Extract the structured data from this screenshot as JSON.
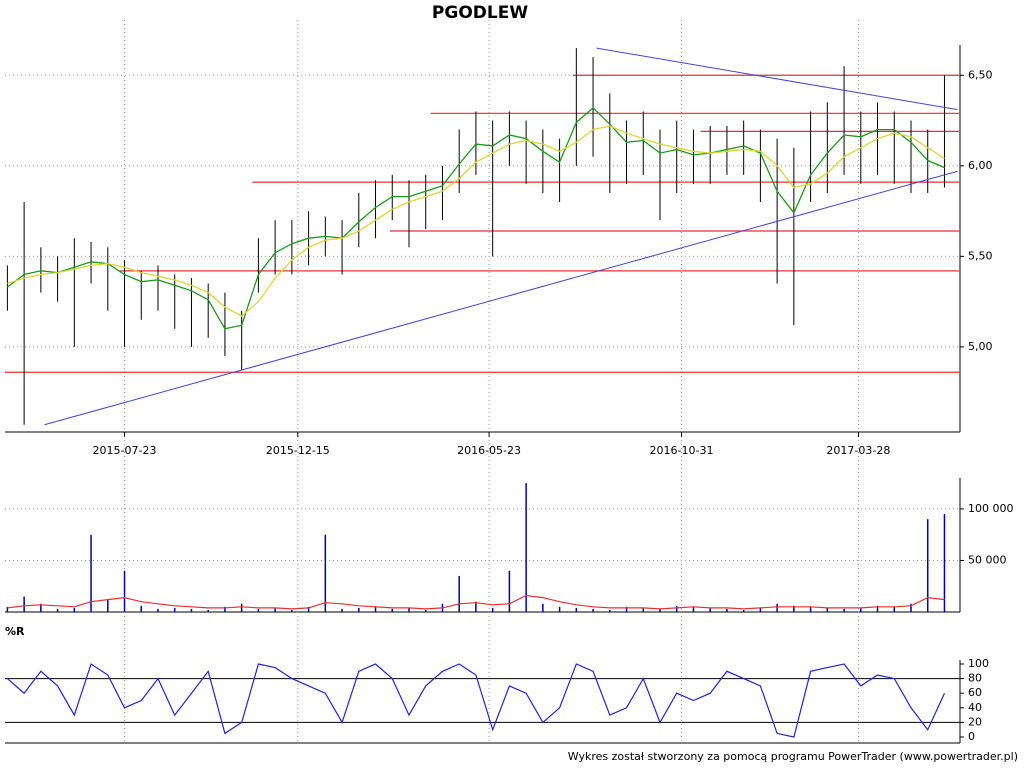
{
  "chart_data": {
    "type": "stock",
    "title": "PGODLEW",
    "footer": "Wykres został stworzony za pomocą programu PowerTrader (www.powertrader.pl)",
    "xlim": [
      "2015-04-14",
      "2017-06-21"
    ],
    "xticks": [
      "2015-07-23",
      "2015-12-15",
      "2016-05-23",
      "2016-10-31",
      "2017-03-28"
    ],
    "grid": true,
    "x": [
      "2015-04-16",
      "2015-04-30",
      "2015-05-14",
      "2015-05-28",
      "2015-06-11",
      "2015-06-25",
      "2015-07-09",
      "2015-07-23",
      "2015-08-06",
      "2015-08-20",
      "2015-09-03",
      "2015-09-17",
      "2015-10-01",
      "2015-10-15",
      "2015-10-29",
      "2015-11-12",
      "2015-11-26",
      "2015-12-10",
      "2015-12-24",
      "2016-01-07",
      "2016-01-21",
      "2016-02-04",
      "2016-02-18",
      "2016-03-03",
      "2016-03-17",
      "2016-03-31",
      "2016-04-14",
      "2016-04-28",
      "2016-05-12",
      "2016-05-26",
      "2016-06-09",
      "2016-06-23",
      "2016-07-07",
      "2016-07-21",
      "2016-08-04",
      "2016-08-18",
      "2016-09-01",
      "2016-09-15",
      "2016-09-29",
      "2016-10-13",
      "2016-10-27",
      "2016-11-10",
      "2016-11-24",
      "2016-12-08",
      "2016-12-22",
      "2017-01-05",
      "2017-01-19",
      "2017-02-02",
      "2017-02-16",
      "2017-03-02",
      "2017-03-16",
      "2017-03-30",
      "2017-04-13",
      "2017-04-27",
      "2017-05-11",
      "2017-05-25",
      "2017-06-08"
    ],
    "price": {
      "ylim": [
        4.53,
        6.75
      ],
      "yticks": [
        {
          "value": 5,
          "label": "5,00"
        },
        {
          "value": 5.5,
          "label": "5,50"
        },
        {
          "value": 6,
          "label": "6,00"
        },
        {
          "value": 6.5,
          "label": "6,50"
        }
      ],
      "bar_color": "#000000",
      "high": [
        5.45,
        5.8,
        5.55,
        5.5,
        5.6,
        5.58,
        5.55,
        5.48,
        5.42,
        5.45,
        5.4,
        5.38,
        5.35,
        5.3,
        5.2,
        5.6,
        5.7,
        5.7,
        5.75,
        5.72,
        5.7,
        5.85,
        5.92,
        5.95,
        5.92,
        5.95,
        6.0,
        6.2,
        6.3,
        6.25,
        6.3,
        6.25,
        6.2,
        6.15,
        6.65,
        6.6,
        6.4,
        6.25,
        6.3,
        6.2,
        6.25,
        6.2,
        6.22,
        6.22,
        6.25,
        6.2,
        6.15,
        6.1,
        6.3,
        6.35,
        6.55,
        6.3,
        6.35,
        6.3,
        6.25,
        6.2,
        6.5
      ],
      "low": [
        5.2,
        4.57,
        5.3,
        5.25,
        5.0,
        5.35,
        5.2,
        5.0,
        5.15,
        5.2,
        5.1,
        5.0,
        5.05,
        4.95,
        4.87,
        5.3,
        5.4,
        5.4,
        5.45,
        5.5,
        5.4,
        5.55,
        5.6,
        5.7,
        5.55,
        5.65,
        5.7,
        5.85,
        5.95,
        5.5,
        6.0,
        5.9,
        5.85,
        5.8,
        6.0,
        6.05,
        5.85,
        5.9,
        5.95,
        5.7,
        5.85,
        5.9,
        5.9,
        5.95,
        5.95,
        5.8,
        5.35,
        5.12,
        5.8,
        5.85,
        5.95,
        5.9,
        5.95,
        5.9,
        5.85,
        5.85,
        5.88
      ],
      "series": [
        {
          "color": "#1a9a1a",
          "values": [
            5.33,
            5.4,
            5.42,
            5.41,
            5.44,
            5.47,
            5.46,
            5.4,
            5.36,
            5.37,
            5.34,
            5.31,
            5.26,
            5.1,
            5.12,
            5.4,
            5.52,
            5.57,
            5.6,
            5.61,
            5.6,
            5.69,
            5.77,
            5.83,
            5.83,
            5.86,
            5.89,
            6.01,
            6.12,
            6.11,
            6.17,
            6.15,
            6.08,
            6.02,
            6.24,
            6.32,
            6.23,
            6.13,
            6.14,
            6.07,
            6.09,
            6.06,
            6.07,
            6.09,
            6.11,
            6.07,
            5.86,
            5.74,
            5.95,
            6.07,
            6.17,
            6.16,
            6.2,
            6.2,
            6.13,
            6.03,
            5.99
          ]
        },
        {
          "color": "#d8d830",
          "values": [
            5.35,
            5.38,
            5.4,
            5.41,
            5.43,
            5.45,
            5.46,
            5.44,
            5.41,
            5.39,
            5.37,
            5.34,
            5.3,
            5.22,
            5.17,
            5.25,
            5.38,
            5.48,
            5.55,
            5.59,
            5.6,
            5.64,
            5.7,
            5.76,
            5.8,
            5.83,
            5.86,
            5.93,
            6.02,
            6.07,
            6.12,
            6.14,
            6.12,
            6.08,
            6.13,
            6.2,
            6.22,
            6.18,
            6.15,
            6.12,
            6.1,
            6.08,
            6.07,
            6.08,
            6.09,
            6.08,
            6.0,
            5.88,
            5.9,
            5.96,
            6.05,
            6.1,
            6.15,
            6.18,
            6.16,
            6.1,
            6.04
          ]
        }
      ],
      "hline_color": "#e83030",
      "hlines": [
        {
          "value": 6.5,
          "start": "2016-08-01"
        },
        {
          "value": 6.29,
          "start": "2016-04-04"
        },
        {
          "value": 6.19,
          "start": "2016-11-16"
        },
        {
          "value": 5.91,
          "start": "2015-11-07"
        },
        {
          "value": 5.64,
          "start": "2016-03-01"
        },
        {
          "value": 5.42,
          "start": "2015-07-19"
        },
        {
          "value": 4.86,
          "start": "2015-04-14"
        }
      ],
      "trend_color": "#4444dd",
      "trendlines": [
        {
          "start": [
            "2015-05-17",
            4.57
          ],
          "end": [
            "2017-06-19",
            5.97
          ]
        },
        {
          "start": [
            "2016-08-21",
            6.65
          ],
          "end": [
            "2017-06-19",
            6.31
          ]
        }
      ]
    },
    "volume": {
      "ylim": [
        0,
        130000
      ],
      "yticks": [
        {
          "value": 50000,
          "label": "50 000"
        },
        {
          "value": 100000,
          "label": "100 000"
        }
      ],
      "color": "#0000aa",
      "values": [
        5000,
        15000,
        8000,
        3000,
        4000,
        75000,
        12000,
        40000,
        6000,
        3000,
        4000,
        3000,
        2000,
        5000,
        8000,
        3000,
        4000,
        2000,
        5000,
        75000,
        3000,
        4000,
        5000,
        3000,
        4000,
        2000,
        8000,
        35000,
        10000,
        4000,
        40000,
        125000,
        8000,
        5000,
        4000,
        3000,
        2000,
        5000,
        4000,
        3000,
        6000,
        5000,
        4000,
        3000,
        2000,
        4000,
        8000,
        6000,
        5000,
        4000,
        3000,
        4000,
        6000,
        5000,
        8000,
        90000,
        95000
      ],
      "ma_color": "#e83030",
      "ma": [
        4000,
        6000,
        7000,
        6000,
        5000,
        10000,
        12000,
        14000,
        10000,
        8000,
        6000,
        5000,
        4000,
        4000,
        5000,
        4000,
        4000,
        3000,
        4000,
        9000,
        8000,
        6000,
        5000,
        4000,
        4000,
        3000,
        4000,
        8000,
        9000,
        7000,
        8000,
        16000,
        14000,
        10000,
        7000,
        5000,
        4000,
        4000,
        4000,
        3000,
        4000,
        5000,
        4000,
        4000,
        3000,
        4000,
        5000,
        5000,
        5000,
        4000,
        4000,
        4000,
        5000,
        5000,
        6000,
        14000,
        12000
      ]
    },
    "williams": {
      "label": "%R",
      "ylim": [
        0,
        100
      ],
      "yticks": [
        0,
        20,
        40,
        60,
        80,
        100
      ],
      "levels": [
        20,
        80
      ],
      "color": "#2222dd",
      "values": [
        80,
        60,
        90,
        70,
        30,
        100,
        85,
        40,
        50,
        80,
        30,
        60,
        90,
        5,
        20,
        100,
        95,
        80,
        70,
        60,
        20,
        90,
        100,
        80,
        30,
        70,
        90,
        100,
        85,
        10,
        70,
        60,
        20,
        40,
        100,
        90,
        30,
        40,
        80,
        20,
        60,
        50,
        60,
        90,
        80,
        70,
        5,
        0,
        90,
        95,
        100,
        70,
        85,
        80,
        40,
        10,
        60
      ]
    }
  }
}
